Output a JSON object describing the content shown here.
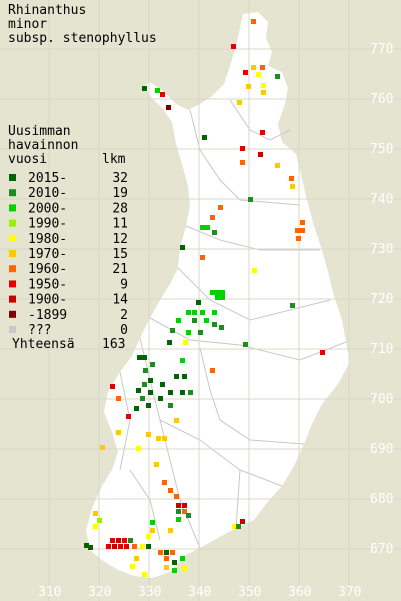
{
  "title": {
    "line1": "Rhinanthus",
    "line2": "minor",
    "line3": "subsp. stenophyllus"
  },
  "legend": {
    "heading1": "Uusimman",
    "heading2": "havainnon",
    "col_year": "vuosi",
    "col_count": "lkm",
    "rows": [
      {
        "label": "2015-",
        "count": "32",
        "color": "#006400"
      },
      {
        "label": "2010-",
        "count": "19",
        "color": "#1e8c1e"
      },
      {
        "label": "2000-",
        "count": "28",
        "color": "#00d200"
      },
      {
        "label": "1990-",
        "count": "11",
        "color": "#96f000"
      },
      {
        "label": "1980-",
        "count": "12",
        "color": "#ffff00"
      },
      {
        "label": "1970-",
        "count": "15",
        "color": "#ffc800"
      },
      {
        "label": "1960-",
        "count": "21",
        "color": "#ff6400"
      },
      {
        "label": "1950-",
        "count": "9",
        "color": "#e60000"
      },
      {
        "label": "1900-",
        "count": "14",
        "color": "#c80000"
      },
      {
        "label": "-1899",
        "count": "2",
        "color": "#800000"
      },
      {
        "label": "???",
        "count": "0",
        "color": "#c8c8c8"
      }
    ],
    "total_label": "Yhteensä",
    "total_count": "163"
  },
  "axes": {
    "x_labels": [
      "310",
      "320",
      "330",
      "340",
      "350",
      "360",
      "370"
    ],
    "y_labels": [
      "770",
      "760",
      "750",
      "740",
      "730",
      "720",
      "710",
      "700",
      "690",
      "680",
      "670"
    ]
  },
  "colors": {
    "background": "#e4e4d0",
    "land": "#ffffff",
    "grid": "#d8d8c8",
    "borders": "#c8c8c8"
  }
}
